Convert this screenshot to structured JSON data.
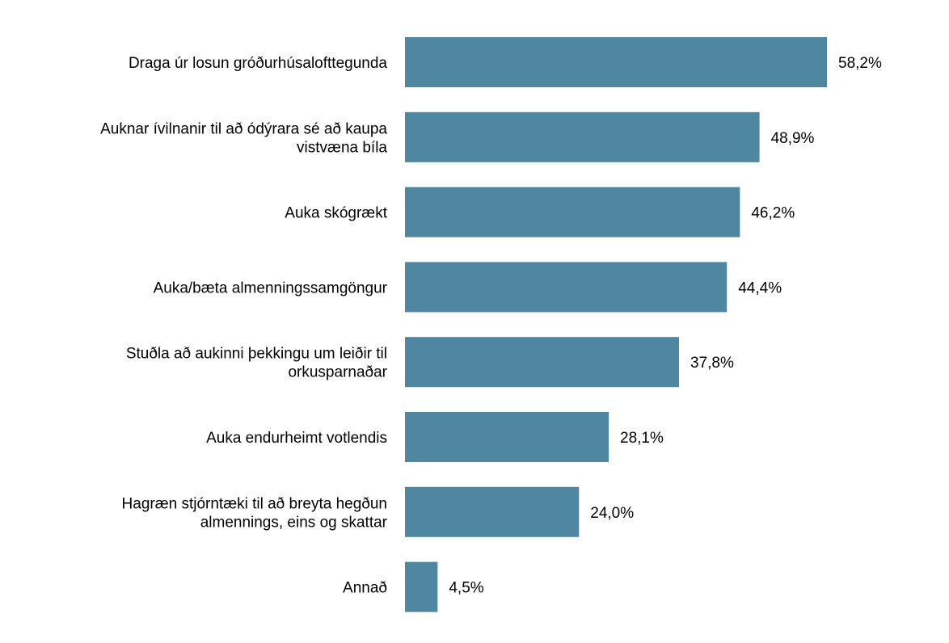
{
  "chart_data": {
    "type": "bar",
    "orientation": "horizontal",
    "categories": [
      [
        "Draga úr losun gróðurhúsalofttegunda"
      ],
      [
        "Auknar ívilnanir til að ódýrara sé að kaupa",
        "vistvæna bíla"
      ],
      [
        "Auka skógrækt"
      ],
      [
        "Auka/bæta almenningssamgöngur"
      ],
      [
        "Stuðla að aukinni þekkingu um leiðir til",
        "orkusparnaðar"
      ],
      [
        "Auka endurheimt votlendis"
      ],
      [
        "Hagræn stjórntæki til að breyta hegðun",
        "almennings, eins og skattar"
      ],
      [
        "Annað"
      ]
    ],
    "values": [
      58.2,
      48.9,
      46.2,
      44.4,
      37.8,
      28.1,
      24.0,
      4.5
    ],
    "value_labels": [
      "58,2%",
      "48,9%",
      "46,2%",
      "44,4%",
      "37,8%",
      "28,1%",
      "24,0%",
      "4,5%"
    ],
    "xlim": [
      0,
      58.2
    ],
    "grid": false,
    "legend": "none",
    "bar_color": "#4f86a0"
  }
}
